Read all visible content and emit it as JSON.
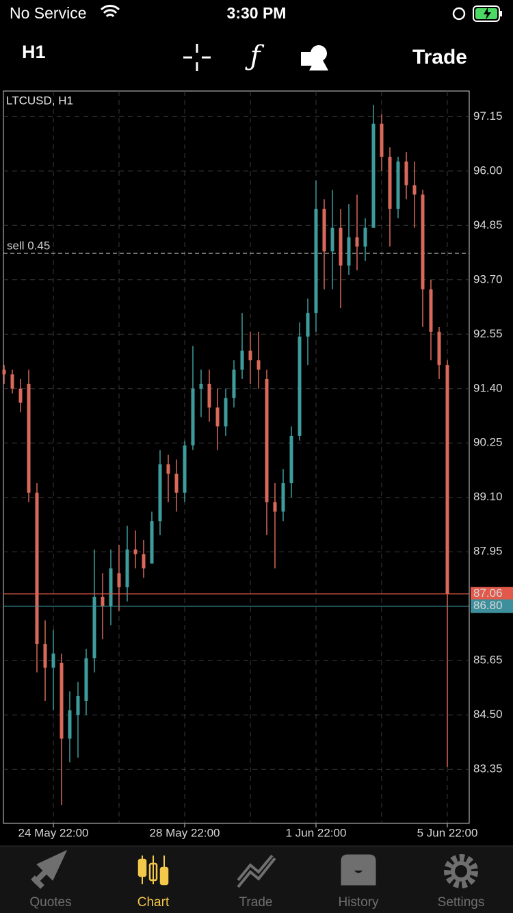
{
  "status_bar": {
    "carrier": "No Service",
    "time": "3:30 PM"
  },
  "toolbar": {
    "timeframe": "H1",
    "action": "Trade"
  },
  "chart_data": {
    "type": "candlestick",
    "title": "LTCUSD, H1",
    "categories": [
      null,
      null,
      null,
      null,
      null,
      null,
      "24 May 22:00",
      null,
      null,
      null,
      null,
      null,
      null,
      null,
      null,
      null,
      null,
      null,
      null,
      null,
      null,
      null,
      "28 May 22:00",
      null,
      null,
      null,
      null,
      null,
      null,
      null,
      null,
      null,
      null,
      null,
      null,
      null,
      null,
      null,
      "1 Jun 22:00",
      null,
      null,
      null,
      null,
      null,
      null,
      null,
      null,
      null,
      null,
      null,
      null,
      null,
      null,
      null,
      "5 Jun 22:00"
    ],
    "open": [
      91.8,
      91.7,
      91.4,
      91.5,
      89.2,
      86.0,
      85.5,
      85.6,
      84.0,
      84.5,
      84.8,
      85.7,
      87.0,
      86.8,
      87.5,
      87.2,
      88.0,
      87.9,
      87.7,
      88.6,
      89.8,
      89.6,
      89.2,
      90.2,
      91.4,
      91.5,
      91.0,
      90.6,
      91.2,
      91.8,
      92.2,
      92.0,
      91.6,
      89.0,
      88.8,
      89.4,
      90.4,
      92.5,
      93.0,
      95.2,
      94.3,
      94.8,
      94.0,
      94.6,
      94.4,
      94.8,
      97.0,
      96.3,
      95.2,
      96.2,
      95.7,
      95.5,
      93.5,
      92.6,
      91.9
    ],
    "high": [
      91.9,
      91.8,
      91.6,
      91.8,
      89.4,
      86.5,
      86.3,
      85.8,
      85.0,
      85.2,
      85.9,
      88.0,
      87.5,
      88.0,
      88.1,
      88.5,
      88.4,
      88.2,
      88.8,
      90.1,
      90.0,
      89.9,
      90.3,
      92.3,
      91.8,
      91.8,
      91.4,
      91.4,
      92.0,
      93.0,
      92.6,
      92.6,
      91.8,
      89.4,
      89.7,
      90.6,
      92.8,
      93.3,
      95.8,
      95.4,
      95.6,
      95.2,
      95.3,
      95.5,
      95.0,
      97.4,
      97.2,
      96.5,
      96.3,
      96.4,
      96.2,
      95.6,
      93.7,
      92.7,
      92.0
    ],
    "low": [
      91.5,
      91.3,
      90.9,
      89.0,
      85.4,
      84.8,
      84.6,
      82.6,
      83.5,
      83.6,
      84.5,
      85.4,
      86.1,
      86.4,
      86.7,
      86.9,
      87.6,
      87.4,
      87.7,
      88.3,
      89.0,
      88.8,
      89.0,
      90.1,
      90.8,
      90.7,
      90.1,
      90.4,
      91.0,
      91.6,
      91.5,
      91.4,
      88.3,
      87.6,
      88.6,
      89.1,
      90.3,
      91.9,
      92.6,
      93.5,
      93.5,
      93.1,
      93.8,
      93.9,
      94.1,
      94.8,
      96.0,
      94.4,
      95.0,
      95.4,
      94.8,
      92.7,
      92.0,
      91.6,
      83.4
    ],
    "close": [
      91.7,
      91.4,
      91.1,
      89.2,
      86.0,
      85.5,
      85.8,
      84.0,
      84.6,
      84.9,
      85.7,
      87.0,
      86.8,
      87.6,
      87.2,
      88.0,
      87.9,
      87.6,
      88.6,
      89.8,
      89.6,
      89.2,
      90.2,
      91.4,
      91.5,
      91.0,
      90.6,
      91.2,
      91.8,
      92.2,
      92.0,
      91.8,
      89.0,
      88.8,
      89.4,
      90.4,
      92.5,
      93.0,
      95.2,
      94.3,
      94.8,
      94.0,
      94.6,
      94.4,
      94.8,
      97.0,
      96.3,
      95.2,
      96.2,
      95.7,
      95.5,
      93.5,
      92.6,
      91.9,
      87.06
    ],
    "up_color": "#3f9c9c",
    "down_color": "#d9695b",
    "ylim": [
      82.21,
      97.69
    ],
    "yticks": [
      97.15,
      {
        "value": 96,
        "label": "96.00"
      },
      94.85,
      {
        "value": 93.7,
        "label": "93.70"
      },
      92.55,
      {
        "value": 91.4,
        "label": "91.40"
      },
      90.25,
      {
        "value": 89.1,
        "label": "89.10"
      },
      87.95,
      85.65,
      {
        "value": 84.5,
        "label": "84.50"
      },
      83.35
    ],
    "grid": true,
    "price_lines": [
      {
        "value": 87.06,
        "color": "#e0594a"
      },
      {
        "value": 86.8,
        "label": "86.80",
        "color": "#3d8f9b"
      }
    ],
    "order": {
      "label": "sell 0.45",
      "price": 94.26
    }
  },
  "tab_bar": {
    "tabs": [
      "Quotes",
      "Chart",
      "Trade",
      "History",
      "Settings"
    ],
    "active": 1
  }
}
